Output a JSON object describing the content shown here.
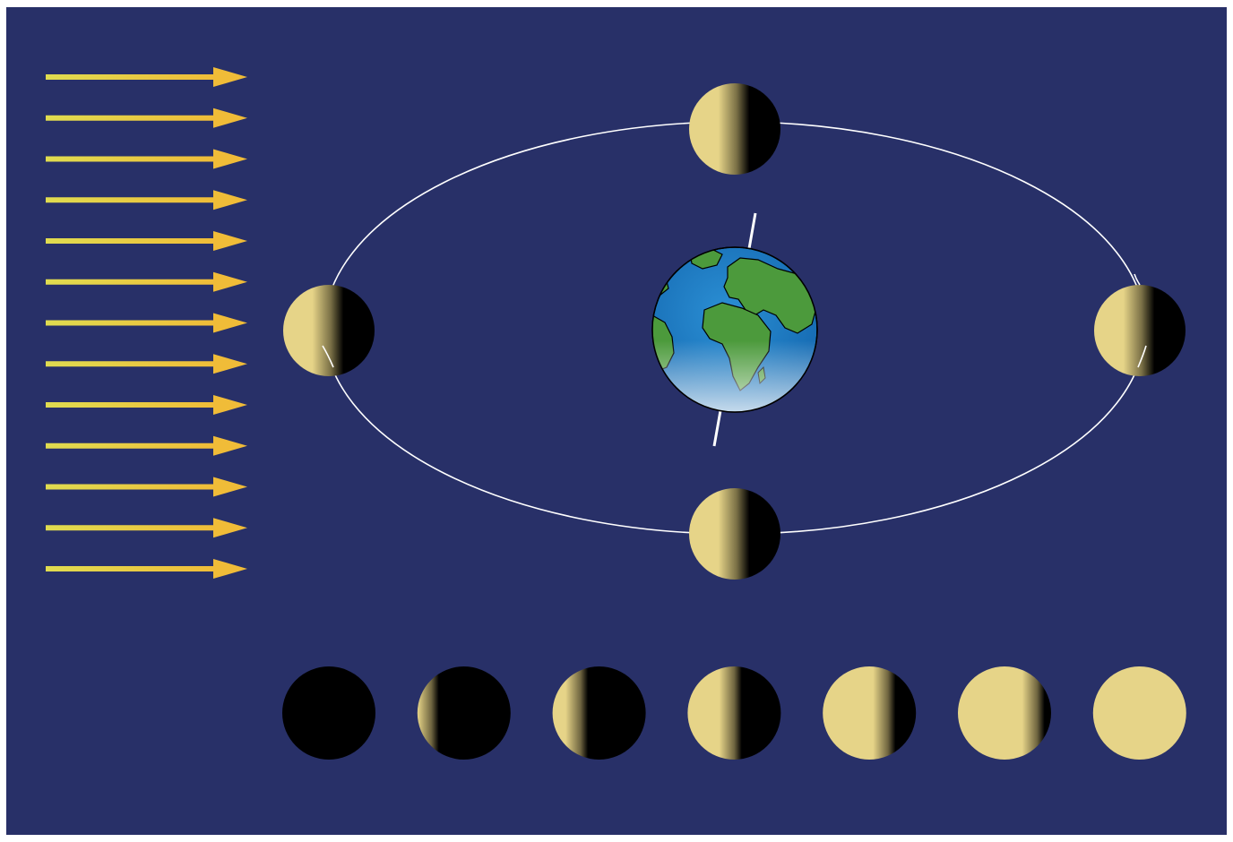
{
  "colors": {
    "background": "#283068",
    "frame": "#ffffff",
    "sunlight_start": "#e0dc50",
    "sunlight_end": "#f0bc38",
    "moon_lit": "#e6d488",
    "moon_dark": "#000000",
    "orbit": "#ffffff",
    "earth_ocean": "#1a7cc4",
    "earth_land": "#4c9a3c",
    "axis": "#ffffff"
  },
  "sunlight": {
    "arrow_count": 13,
    "direction": "left-to-right"
  },
  "orbit": {
    "moons": [
      {
        "id": "moon-orbit-top"
      },
      {
        "id": "moon-orbit-left"
      },
      {
        "id": "moon-orbit-right"
      },
      {
        "id": "moon-orbit-bottom"
      }
    ]
  },
  "earth": {
    "icon": "earth-globe-icon",
    "axis_tilt_deg": 10
  },
  "phases": {
    "illumination": [
      0,
      0.15,
      0.3,
      0.5,
      0.7,
      0.85,
      1.0
    ]
  }
}
